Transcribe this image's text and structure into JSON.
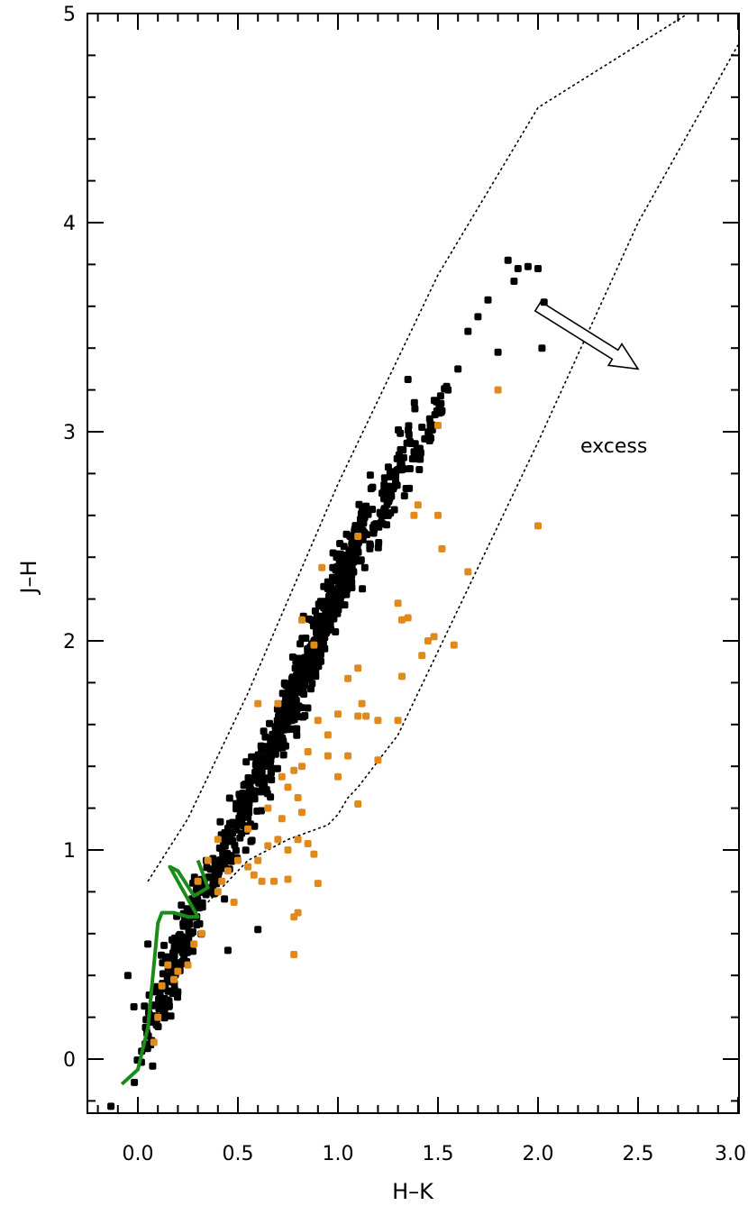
{
  "chart_data": {
    "type": "scatter",
    "title": "",
    "xlabel": "H–K",
    "ylabel": "J–H",
    "xlim": [
      -0.25,
      3.0
    ],
    "ylim": [
      -0.25,
      5.0
    ],
    "xticks": [
      {
        "value": 0.0,
        "label": "0.0"
      },
      {
        "value": 0.5,
        "label": "0.5"
      },
      {
        "value": 1.0,
        "label": "1.0"
      },
      {
        "value": 1.5,
        "label": "1.5"
      },
      {
        "value": 2.0,
        "label": "2.0"
      },
      {
        "value": 2.5,
        "label": "2.5"
      },
      {
        "value": 3.0,
        "label": "3.0"
      }
    ],
    "yticks": [
      {
        "value": 0,
        "label": "0"
      },
      {
        "value": 1,
        "label": "1"
      },
      {
        "value": 2,
        "label": "2"
      },
      {
        "value": 3,
        "label": "3"
      },
      {
        "value": 4,
        "label": "4"
      },
      {
        "value": 5,
        "label": "5"
      }
    ],
    "grid": false,
    "legend": "none",
    "annotations": [
      {
        "text": "excess",
        "x": 2.2,
        "y": 2.95
      }
    ],
    "colors": {
      "black_points": "#000000",
      "orange_points": "#e08a1e",
      "main_sequence": "#1a8c1a",
      "lines": "#000000"
    },
    "lines": {
      "reddening_upper": [
        [
          0.05,
          0.85
        ],
        [
          0.25,
          1.15
        ],
        [
          0.55,
          1.75
        ],
        [
          1.0,
          2.75
        ],
        [
          1.5,
          3.75
        ],
        [
          2.0,
          4.55
        ],
        [
          2.75,
          5.0
        ]
      ],
      "reddening_lower": [
        [
          0.35,
          0.75
        ],
        [
          0.55,
          0.95
        ],
        [
          0.75,
          1.05
        ],
        [
          0.95,
          1.12
        ],
        [
          1.0,
          1.17
        ],
        [
          1.05,
          1.25
        ],
        [
          1.1,
          1.3
        ],
        [
          1.3,
          1.55
        ],
        [
          1.65,
          2.25
        ],
        [
          2.0,
          2.95
        ],
        [
          2.5,
          4.0
        ],
        [
          3.0,
          4.85
        ]
      ],
      "main_sequence_track": [
        [
          -0.08,
          -0.12
        ],
        [
          0.0,
          -0.05
        ],
        [
          0.05,
          0.15
        ],
        [
          0.08,
          0.45
        ],
        [
          0.1,
          0.65
        ],
        [
          0.12,
          0.7
        ],
        [
          0.18,
          0.7
        ],
        [
          0.25,
          0.68
        ],
        [
          0.3,
          0.68
        ],
        [
          0.2,
          0.85
        ],
        [
          0.16,
          0.92
        ],
        [
          0.2,
          0.9
        ],
        [
          0.28,
          0.78
        ],
        [
          0.35,
          0.82
        ],
        [
          0.32,
          0.9
        ],
        [
          0.3,
          0.95
        ]
      ],
      "reddening_arrow": [
        [
          2.0,
          3.6
        ],
        [
          2.5,
          3.3
        ]
      ]
    },
    "series": [
      {
        "color": "black",
        "clusters": [
          {
            "x0": 0.18,
            "y0": 0.45,
            "dx": 0.08,
            "dy": 0.22,
            "count": 180
          },
          {
            "x0": 0.55,
            "y0": 1.25,
            "dx": 0.07,
            "dy": 0.18,
            "count": 120
          },
          {
            "x0": 0.72,
            "y0": 1.6,
            "dx": 0.06,
            "dy": 0.2,
            "count": 160
          },
          {
            "x0": 0.9,
            "y0": 2.0,
            "dx": 0.06,
            "dy": 0.2,
            "count": 220
          },
          {
            "x0": 1.05,
            "y0": 2.35,
            "dx": 0.05,
            "dy": 0.15,
            "count": 200
          },
          {
            "x0": 1.25,
            "y0": 2.7,
            "dx": 0.05,
            "dy": 0.15,
            "count": 80
          },
          {
            "x0": 1.45,
            "y0": 3.0,
            "dx": 0.05,
            "dy": 0.12,
            "count": 40
          },
          {
            "x0": 0.4,
            "y0": 0.9,
            "dx": 0.08,
            "dy": 0.15,
            "count": 60
          }
        ],
        "points": [
          [
            1.85,
            3.82
          ],
          [
            1.9,
            3.78
          ],
          [
            1.95,
            3.79
          ],
          [
            2.0,
            3.78
          ],
          [
            1.88,
            3.72
          ],
          [
            1.75,
            3.63
          ],
          [
            1.7,
            3.55
          ],
          [
            1.65,
            3.48
          ],
          [
            2.03,
            3.62
          ],
          [
            2.02,
            3.4
          ],
          [
            1.8,
            3.38
          ],
          [
            1.6,
            3.3
          ],
          [
            1.55,
            3.2
          ],
          [
            1.52,
            3.1
          ],
          [
            1.35,
            3.25
          ],
          [
            -0.05,
            0.4
          ],
          [
            -0.02,
            0.25
          ],
          [
            0.05,
            0.55
          ],
          [
            0.6,
            0.62
          ],
          [
            0.45,
            0.52
          ]
        ]
      },
      {
        "color": "orange",
        "points": [
          [
            1.8,
            3.2
          ],
          [
            1.5,
            3.03
          ],
          [
            1.4,
            2.65
          ],
          [
            1.38,
            2.6
          ],
          [
            1.5,
            2.6
          ],
          [
            1.52,
            2.44
          ],
          [
            2.0,
            2.55
          ],
          [
            1.65,
            2.33
          ],
          [
            1.3,
            2.18
          ],
          [
            1.32,
            2.1
          ],
          [
            1.35,
            2.11
          ],
          [
            1.48,
            2.02
          ],
          [
            1.45,
            2.0
          ],
          [
            1.58,
            1.98
          ],
          [
            1.42,
            1.93
          ],
          [
            1.1,
            1.87
          ],
          [
            1.05,
            1.82
          ],
          [
            1.32,
            1.83
          ],
          [
            1.12,
            1.7
          ],
          [
            1.1,
            1.64
          ],
          [
            1.14,
            1.64
          ],
          [
            1.0,
            1.65
          ],
          [
            1.2,
            1.62
          ],
          [
            1.3,
            1.62
          ],
          [
            0.95,
            1.55
          ],
          [
            1.2,
            1.43
          ],
          [
            1.05,
            1.45
          ],
          [
            0.95,
            1.45
          ],
          [
            1.0,
            1.35
          ],
          [
            1.1,
            1.22
          ],
          [
            0.85,
            1.47
          ],
          [
            0.82,
            1.4
          ],
          [
            0.78,
            1.38
          ],
          [
            0.75,
            1.3
          ],
          [
            0.8,
            1.25
          ],
          [
            0.82,
            1.18
          ],
          [
            0.72,
            1.15
          ],
          [
            0.7,
            1.05
          ],
          [
            0.75,
            1.0
          ],
          [
            0.8,
            1.05
          ],
          [
            0.85,
            1.03
          ],
          [
            0.88,
            0.98
          ],
          [
            0.65,
            1.02
          ],
          [
            0.6,
            0.95
          ],
          [
            0.55,
            0.92
          ],
          [
            0.58,
            0.88
          ],
          [
            0.62,
            0.85
          ],
          [
            0.68,
            0.85
          ],
          [
            0.75,
            0.86
          ],
          [
            0.9,
            0.84
          ],
          [
            0.5,
            0.95
          ],
          [
            0.45,
            0.9
          ],
          [
            0.42,
            0.85
          ],
          [
            0.4,
            0.8
          ],
          [
            0.35,
            0.95
          ],
          [
            0.3,
            0.85
          ],
          [
            0.32,
            0.6
          ],
          [
            0.28,
            0.55
          ],
          [
            0.25,
            0.45
          ],
          [
            0.2,
            0.42
          ],
          [
            0.15,
            0.45
          ],
          [
            0.18,
            0.38
          ],
          [
            0.12,
            0.35
          ],
          [
            0.1,
            0.2
          ],
          [
            0.08,
            0.08
          ],
          [
            0.78,
            0.68
          ],
          [
            0.8,
            0.7
          ],
          [
            0.78,
            0.5
          ],
          [
            0.6,
            1.7
          ],
          [
            0.7,
            1.7
          ],
          [
            0.82,
            2.1
          ],
          [
            0.88,
            1.98
          ],
          [
            0.92,
            2.35
          ],
          [
            1.1,
            2.5
          ],
          [
            0.4,
            1.05
          ],
          [
            0.48,
            0.75
          ],
          [
            0.55,
            1.1
          ],
          [
            0.65,
            1.2
          ],
          [
            0.72,
            1.35
          ],
          [
            0.9,
            1.62
          ]
        ]
      }
    ]
  }
}
